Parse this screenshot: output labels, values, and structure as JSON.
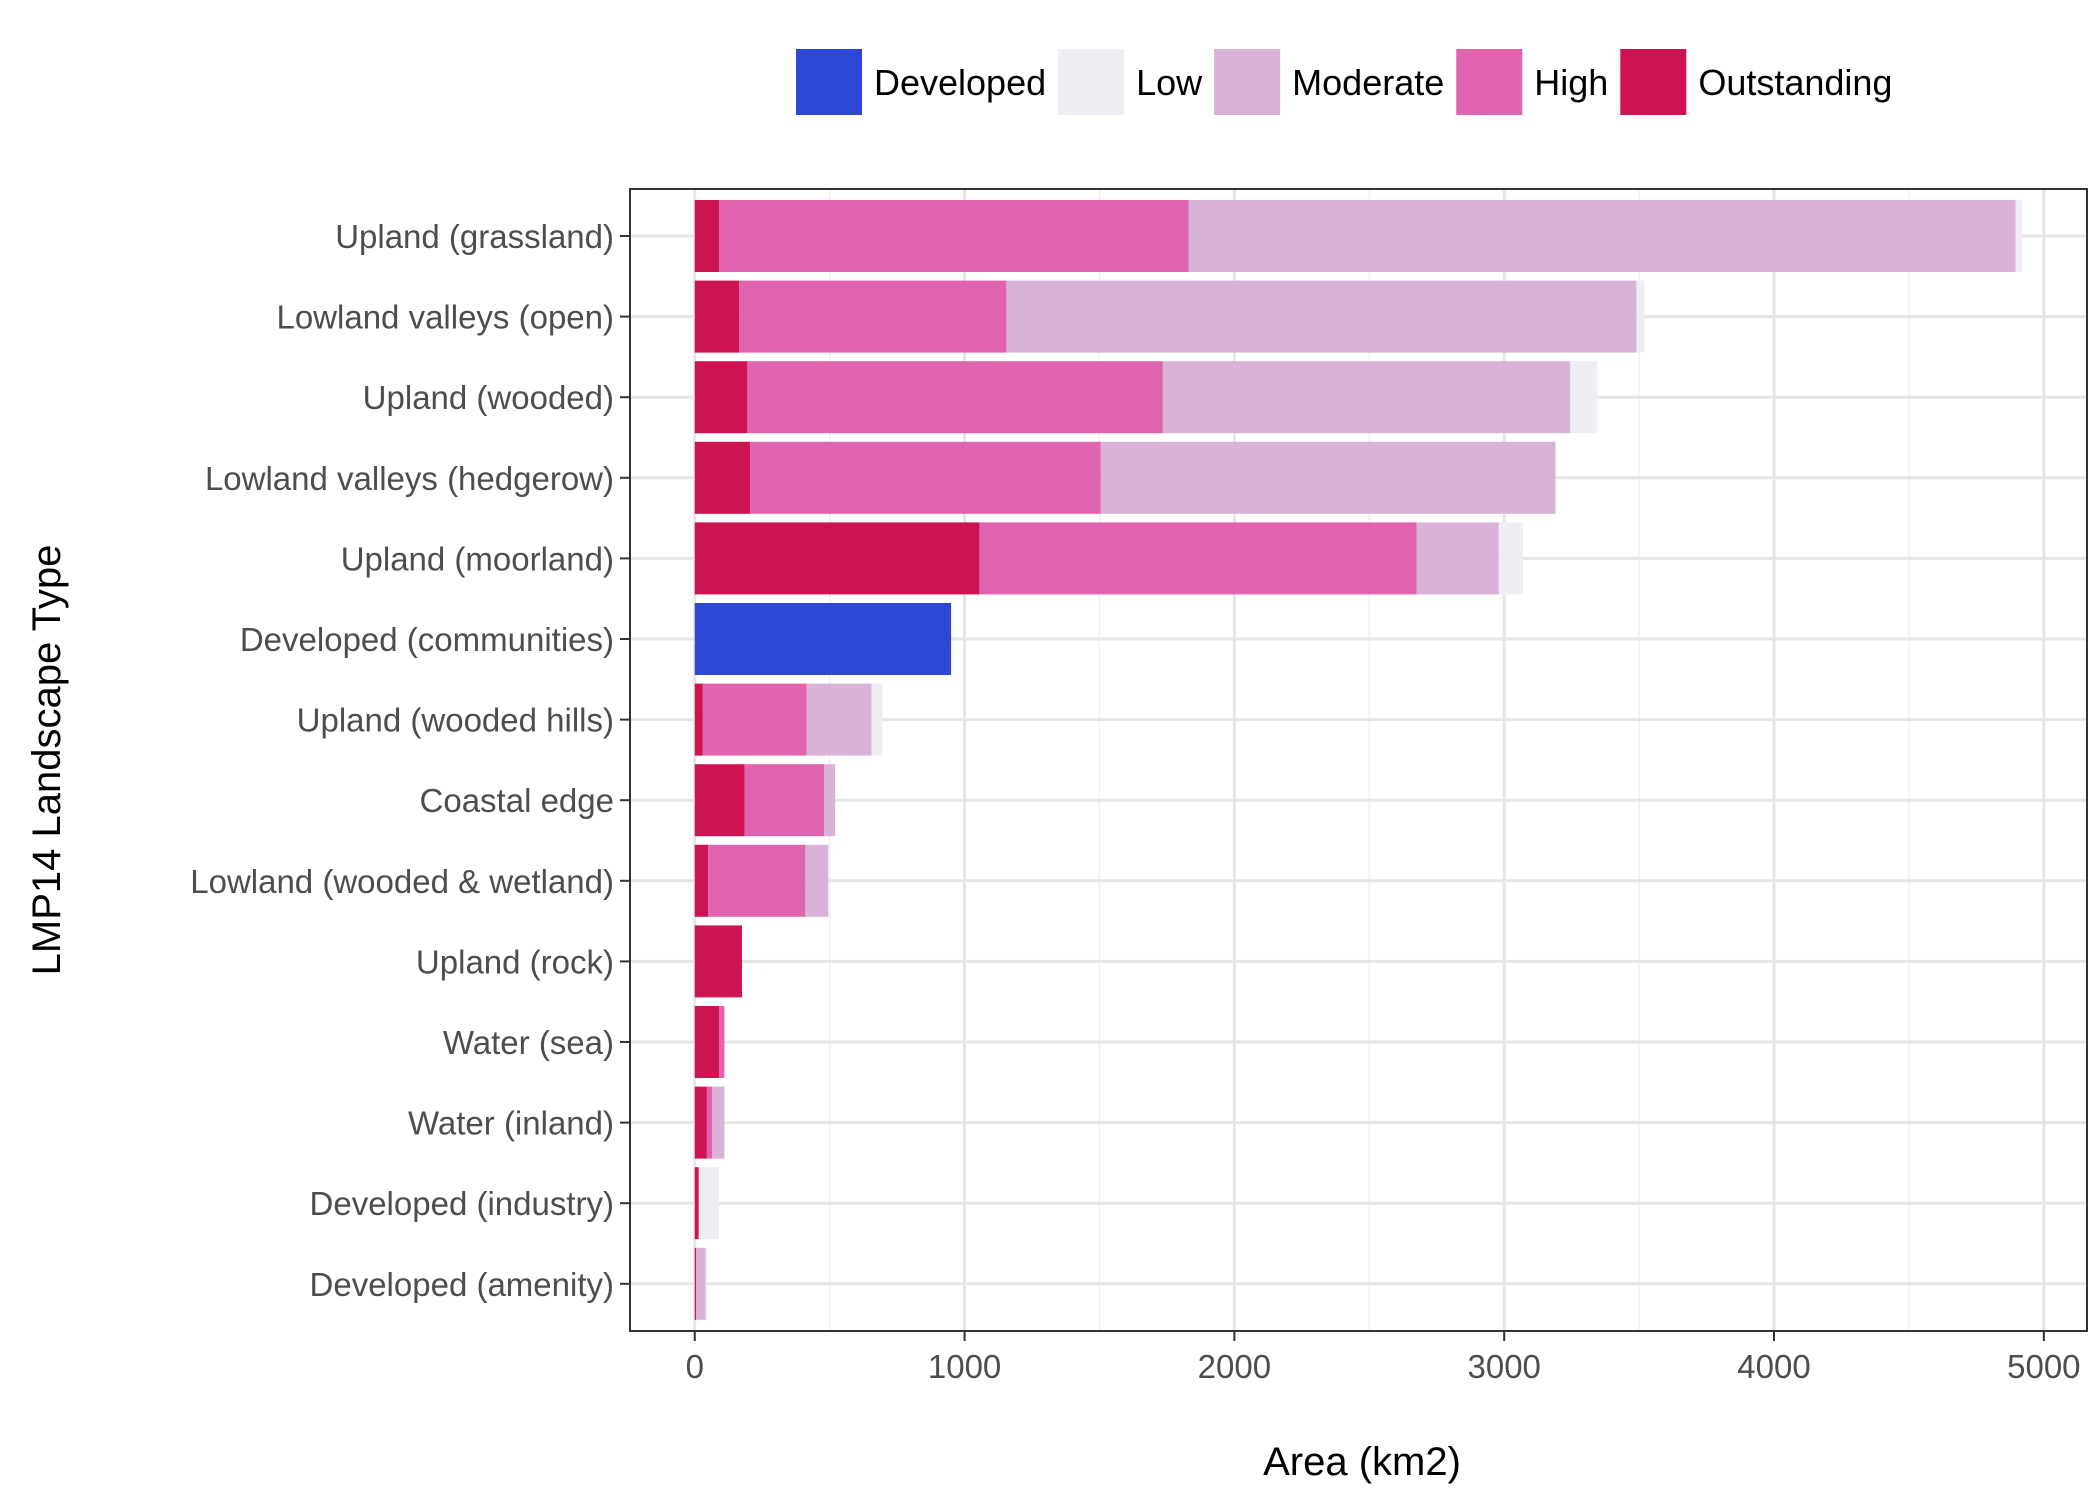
{
  "chart_data": {
    "type": "bar",
    "orientation": "horizontal",
    "stacked": true,
    "title": "",
    "xlabel": "Area (km2)",
    "ylabel": "LMP14 Landscape Type",
    "xlim": [
      -240,
      5160
    ],
    "xticks": [
      0,
      1000,
      2000,
      3000,
      4000,
      5000
    ],
    "xtick_labels": [
      "0",
      "1000",
      "2000",
      "3000",
      "4000",
      "5000"
    ],
    "grid": true,
    "legend_position": "top",
    "categories": [
      "Upland (grassland)",
      "Lowland valleys (open)",
      "Upland (wooded)",
      "Lowland valleys (hedgerow)",
      "Upland (moorland)",
      "Developed (communities)",
      "Upland (wooded hills)",
      "Coastal edge",
      "Lowland (wooded & wetland)",
      "Upland (rock)",
      "Water (sea)",
      "Water (inland)",
      "Developed (industry)",
      "Developed (amenity)"
    ],
    "series": [
      {
        "name": "Outstanding",
        "color": "#CD1451",
        "values": [
          90,
          165,
          195,
          205,
          1055,
          0,
          30,
          185,
          50,
          175,
          90,
          45,
          15,
          5
        ]
      },
      {
        "name": "High",
        "color": "#DF63AF",
        "values": [
          1740,
          990,
          1540,
          1300,
          1620,
          0,
          385,
          295,
          360,
          0,
          20,
          20,
          0,
          0
        ]
      },
      {
        "name": "Moderate",
        "color": "#D8B3D7",
        "values": [
          3065,
          2335,
          1510,
          1685,
          305,
          0,
          240,
          40,
          85,
          0,
          0,
          45,
          0,
          35
        ]
      },
      {
        "name": "Low",
        "color": "#EFEDF4",
        "values": [
          25,
          30,
          100,
          0,
          90,
          0,
          40,
          0,
          0,
          0,
          0,
          0,
          75,
          5
        ]
      },
      {
        "name": "Developed",
        "color": "#2D48D4",
        "values": [
          0,
          0,
          0,
          0,
          0,
          950,
          0,
          0,
          0,
          0,
          0,
          0,
          0,
          0
        ]
      }
    ],
    "legend_order": [
      "Developed",
      "Low",
      "Moderate",
      "High",
      "Outstanding"
    ]
  }
}
